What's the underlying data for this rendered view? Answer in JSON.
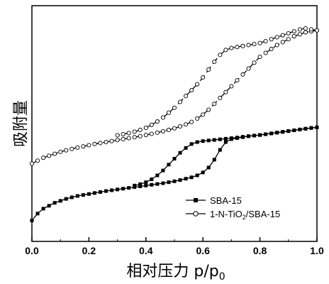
{
  "chart_data": {
    "type": "line",
    "xlabel": "相对压力 p/p",
    "xlabel_subscript": "0",
    "ylabel": "吸附量",
    "xlim": [
      0.0,
      1.0
    ],
    "xticks": [
      "0.0",
      "0.2",
      "0.4",
      "0.6",
      "0.8",
      "1.0"
    ],
    "ylim": [
      0,
      100
    ],
    "y_tick_labels_shown": false,
    "legend_position": "lower-right",
    "series": [
      {
        "name": "SBA-15",
        "marker": "filled-square",
        "color": "#000000",
        "adsorption": {
          "x": [
            0.0,
            0.02,
            0.04,
            0.06,
            0.08,
            0.1,
            0.12,
            0.14,
            0.16,
            0.18,
            0.2,
            0.22,
            0.24,
            0.26,
            0.28,
            0.3,
            0.32,
            0.34,
            0.36,
            0.38,
            0.4,
            0.42,
            0.44,
            0.46,
            0.48,
            0.5,
            0.52,
            0.54,
            0.56,
            0.58,
            0.6,
            0.62,
            0.64,
            0.66,
            0.68,
            0.7,
            0.72,
            0.74,
            0.76,
            0.78,
            0.8,
            0.82,
            0.84,
            0.86,
            0.88,
            0.9,
            0.92,
            0.94,
            0.96,
            0.98,
            1.0
          ],
          "y": [
            2.0,
            5.5,
            8.0,
            9.5,
            11.0,
            12.0,
            13.0,
            13.8,
            14.5,
            15.0,
            15.5,
            16.0,
            16.5,
            17.0,
            17.4,
            17.8,
            18.2,
            18.6,
            19.0,
            19.4,
            19.8,
            20.2,
            20.6,
            21.0,
            21.5,
            22.0,
            22.6,
            23.3,
            24.0,
            25.0,
            26.5,
            29.0,
            33.0,
            38.0,
            42.0,
            43.5,
            44.0,
            44.5,
            45.0,
            45.3,
            45.6,
            46.0,
            46.4,
            46.8,
            47.2,
            47.6,
            48.0,
            48.4,
            48.8,
            49.2,
            49.5
          ]
        },
        "desorption": {
          "x": [
            1.0,
            0.98,
            0.96,
            0.94,
            0.92,
            0.9,
            0.88,
            0.86,
            0.84,
            0.82,
            0.8,
            0.78,
            0.76,
            0.74,
            0.72,
            0.7,
            0.68,
            0.66,
            0.64,
            0.62,
            0.6,
            0.58,
            0.56,
            0.54,
            0.52,
            0.5,
            0.48,
            0.46,
            0.44,
            0.42,
            0.4,
            0.38,
            0.36
          ],
          "y": [
            49.5,
            49.2,
            48.8,
            48.4,
            48.0,
            47.6,
            47.2,
            46.8,
            46.4,
            46.0,
            45.6,
            45.3,
            45.0,
            44.7,
            44.3,
            44.0,
            43.7,
            43.4,
            43.1,
            42.8,
            42.5,
            42.0,
            41.0,
            39.0,
            36.5,
            33.5,
            30.5,
            27.5,
            25.0,
            23.0,
            21.5,
            20.5,
            19.8
          ]
        }
      },
      {
        "name": "1-N-TiO2/SBA-15",
        "name_main": "1-N-TiO",
        "name_sub": "2",
        "name_tail": "/SBA-15",
        "marker": "open-circle",
        "color": "#000000",
        "adsorption": {
          "x": [
            0.0,
            0.02,
            0.04,
            0.06,
            0.08,
            0.1,
            0.12,
            0.14,
            0.16,
            0.18,
            0.2,
            0.22,
            0.24,
            0.26,
            0.28,
            0.3,
            0.32,
            0.34,
            0.36,
            0.38,
            0.4,
            0.42,
            0.44,
            0.46,
            0.48,
            0.5,
            0.52,
            0.54,
            0.56,
            0.58,
            0.6,
            0.62,
            0.64,
            0.66,
            0.68,
            0.7,
            0.72,
            0.74,
            0.76,
            0.78,
            0.8,
            0.82,
            0.84,
            0.86,
            0.88,
            0.9,
            0.92,
            0.94,
            0.96,
            0.98,
            1.0
          ],
          "y": [
            31.0,
            32.5,
            34.0,
            35.0,
            36.0,
            37.0,
            37.8,
            38.5,
            39.2,
            39.8,
            40.4,
            41.0,
            41.5,
            42.0,
            42.5,
            43.0,
            43.5,
            44.0,
            44.5,
            45.0,
            45.6,
            46.2,
            46.8,
            47.5,
            48.2,
            49.0,
            50.0,
            51.0,
            52.3,
            54.0,
            56.0,
            58.5,
            61.5,
            64.5,
            67.5,
            70.5,
            73.5,
            76.5,
            79.5,
            82.5,
            85.5,
            87.5,
            89.5,
            91.5,
            93.0,
            94.5,
            96.0,
            97.0,
            98.0,
            98.5,
            99.0
          ]
        },
        "desorption": {
          "x": [
            1.0,
            0.98,
            0.96,
            0.94,
            0.92,
            0.9,
            0.88,
            0.86,
            0.84,
            0.82,
            0.8,
            0.78,
            0.76,
            0.74,
            0.72,
            0.7,
            0.68,
            0.66,
            0.64,
            0.62,
            0.6,
            0.58,
            0.56,
            0.54,
            0.52,
            0.5,
            0.48,
            0.46,
            0.44,
            0.42,
            0.4,
            0.38,
            0.36,
            0.34,
            0.32,
            0.3
          ],
          "y": [
            99.0,
            99.5,
            100.0,
            99.5,
            98.5,
            97.5,
            96.5,
            95.5,
            94.5,
            93.5,
            92.5,
            92.0,
            91.5,
            91.0,
            90.5,
            90.0,
            89.0,
            86.5,
            83.0,
            79.0,
            75.0,
            71.5,
            68.5,
            65.5,
            62.5,
            59.5,
            57.0,
            54.5,
            52.5,
            50.8,
            49.3,
            48.2,
            47.3,
            46.6,
            46.0,
            45.5
          ]
        }
      }
    ]
  }
}
